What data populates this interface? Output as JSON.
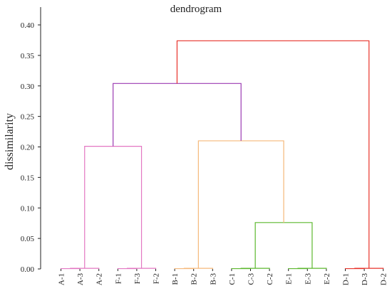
{
  "chart_data": {
    "type": "dendrogram",
    "title": "dendrogram",
    "ylabel": "dissimilarity",
    "xlabel": "",
    "ylim": [
      0,
      0.42
    ],
    "yticks": [
      "0.00",
      "0.05",
      "0.10",
      "0.15",
      "0.20",
      "0.25",
      "0.30",
      "0.35",
      "0.40"
    ],
    "leaves": [
      "A-1",
      "A-3",
      "A-2",
      "F-1",
      "F-3",
      "F-2",
      "B-1",
      "B-2",
      "B-3",
      "C-1",
      "C-3",
      "C-2",
      "E-1",
      "E-3",
      "E-2",
      "D-1",
      "D-3",
      "D-2"
    ],
    "merges": [
      {
        "id": "A13",
        "left": "A-1",
        "right": "A-3",
        "height": 0.0005,
        "color": "#e377c2"
      },
      {
        "id": "A",
        "left": "A13",
        "right": "A-2",
        "height": 0.001,
        "color": "#e377c2"
      },
      {
        "id": "F13",
        "left": "F-1",
        "right": "F-3",
        "height": 0.0005,
        "color": "#e377c2"
      },
      {
        "id": "F",
        "left": "F13",
        "right": "F-2",
        "height": 0.001,
        "color": "#e377c2"
      },
      {
        "id": "AF",
        "left": "A",
        "right": "F",
        "height": 0.201,
        "color": "#e377c2"
      },
      {
        "id": "B12",
        "left": "B-1",
        "right": "B-2",
        "height": 0.0005,
        "color": "#f5b87a"
      },
      {
        "id": "B",
        "left": "B12",
        "right": "B-3",
        "height": 0.001,
        "color": "#f5b87a"
      },
      {
        "id": "C13",
        "left": "C-1",
        "right": "C-3",
        "height": 0.0005,
        "color": "#5cb82e"
      },
      {
        "id": "C",
        "left": "C13",
        "right": "C-2",
        "height": 0.001,
        "color": "#5cb82e"
      },
      {
        "id": "E13",
        "left": "E-1",
        "right": "E-3",
        "height": 0.0005,
        "color": "#5cb82e"
      },
      {
        "id": "E",
        "left": "E13",
        "right": "E-2",
        "height": 0.001,
        "color": "#5cb82e"
      },
      {
        "id": "CE",
        "left": "C",
        "right": "E",
        "height": 0.076,
        "color": "#5cb82e"
      },
      {
        "id": "BCE",
        "left": "B",
        "right": "CE",
        "height": 0.21,
        "color": "#f5b87a"
      },
      {
        "id": "AFBCE",
        "left": "AF",
        "right": "BCE",
        "height": 0.304,
        "color": "#9b3bb3"
      },
      {
        "id": "D13",
        "left": "D-1",
        "right": "D-3",
        "height": 0.0005,
        "color": "#e8322a"
      },
      {
        "id": "D",
        "left": "D13",
        "right": "D-2",
        "height": 0.001,
        "color": "#e8322a"
      },
      {
        "id": "ALL",
        "left": "AFBCE",
        "right": "D",
        "height": 0.374,
        "color": "#e8322a"
      }
    ],
    "grid": false
  }
}
